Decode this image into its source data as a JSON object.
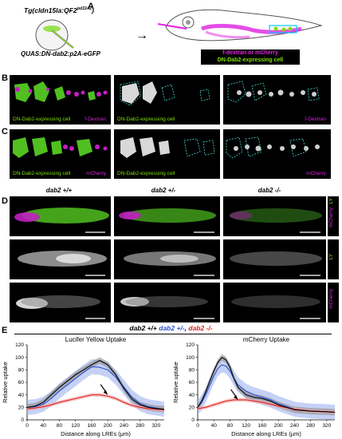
{
  "panel_labels": {
    "a": "A",
    "b": "B",
    "c": "C",
    "d": "D",
    "e": "E"
  },
  "panel_a": {
    "transgene_top": "Tg(cldn15la:QF2",
    "transgene_sup": "pd1142",
    "transgene_end": ")",
    "construct": "QUAS:DN-dab2:p2A-eGFP",
    "legend_magenta": "f-dextran or mCherry",
    "legend_green": "DN-Dab2-expressing cell",
    "color_magenta": "#e020e0",
    "color_green": "#7fe000"
  },
  "panel_b": {
    "cap1a": "DN-Dab2-expressing cell",
    "cap1b": "f-Dextran",
    "cap2": "DN-Dab2-expressing cell",
    "cap3": "f-Dextran"
  },
  "panel_c": {
    "cap1a": "DN-Dab2-expressing cell",
    "cap1b": "mCherry",
    "cap2": "DN-Dab2-expressing cell",
    "cap3": "mCherry"
  },
  "panel_d": {
    "genotypes": [
      "dab2 +/+",
      "dab2 +/-",
      "dab2 -/-"
    ],
    "row_labels": {
      "merge_ly": "LY",
      "merge_mch": "mCherry",
      "ly": "LY",
      "mch": "mCherry"
    }
  },
  "panel_e": {
    "legend_parts": [
      "dab2 +/+",
      "dab2 +/-",
      "dab2 -/-"
    ],
    "legend_colors": [
      "#000000",
      "#2a4fd0",
      "#e02020"
    ]
  },
  "chart_data": [
    {
      "type": "line",
      "title": "Lucifer Yellow Uptake",
      "xlabel": "Distance along LREs (μm)",
      "ylabel": "Relative uptake",
      "xlim": [
        0,
        340
      ],
      "ylim": [
        0,
        120
      ],
      "xticks": [
        0,
        40,
        80,
        120,
        160,
        200,
        240,
        280,
        320
      ],
      "yticks": [
        0,
        20,
        40,
        60,
        80,
        100,
        120
      ],
      "x": [
        0,
        20,
        40,
        60,
        80,
        100,
        120,
        140,
        160,
        180,
        200,
        220,
        240,
        260,
        280,
        300,
        320,
        340
      ],
      "series": [
        {
          "name": "dab2 +/+",
          "color": "#000000",
          "values": [
            20,
            22,
            28,
            40,
            52,
            62,
            72,
            80,
            88,
            95,
            88,
            72,
            50,
            33,
            24,
            20,
            18,
            17
          ],
          "band": 5
        },
        {
          "name": "dab2 +/-",
          "color": "#2a4fd0",
          "values": [
            20,
            21,
            25,
            34,
            46,
            56,
            66,
            76,
            85,
            84,
            80,
            68,
            52,
            36,
            26,
            21,
            19,
            17
          ],
          "band": 12
        },
        {
          "name": "dab2 -/-",
          "color": "#e02020",
          "values": [
            18,
            19,
            21,
            24,
            28,
            31,
            34,
            37,
            40,
            40,
            38,
            34,
            28,
            23,
            20,
            18,
            17,
            16
          ],
          "band": 3
        }
      ],
      "arrow_at": [
        200,
        40
      ]
    },
    {
      "type": "line",
      "title": "mCherry Uptake",
      "xlabel": "Distance along LREs (μm)",
      "ylabel": "Relative uptake",
      "xlim": [
        0,
        340
      ],
      "ylim": [
        0,
        120
      ],
      "xticks": [
        0,
        40,
        80,
        120,
        160,
        200,
        240,
        280,
        320
      ],
      "yticks": [
        0,
        20,
        40,
        60,
        80,
        100,
        120
      ],
      "x": [
        0,
        10,
        20,
        30,
        40,
        50,
        60,
        70,
        80,
        90,
        100,
        120,
        140,
        160,
        180,
        200,
        240,
        280,
        320,
        340
      ],
      "series": [
        {
          "name": "dab2 +/+",
          "color": "#000000",
          "values": [
            20,
            30,
            45,
            62,
            78,
            92,
            100,
            96,
            84,
            66,
            52,
            40,
            36,
            34,
            30,
            24,
            16,
            14,
            13,
            12
          ],
          "band": 5
        },
        {
          "name": "dab2 +/-",
          "color": "#2a4fd0",
          "values": [
            20,
            28,
            40,
            55,
            70,
            82,
            88,
            86,
            78,
            66,
            56,
            46,
            40,
            36,
            32,
            26,
            17,
            14,
            13,
            12
          ],
          "band": 12
        },
        {
          "name": "dab2 -/-",
          "color": "#e02020",
          "values": [
            18,
            19,
            20,
            22,
            24,
            26,
            28,
            30,
            31,
            32,
            32,
            32,
            30,
            28,
            25,
            22,
            17,
            14,
            13,
            12
          ],
          "band": 3
        }
      ],
      "arrow_at": [
        100,
        32
      ]
    }
  ]
}
